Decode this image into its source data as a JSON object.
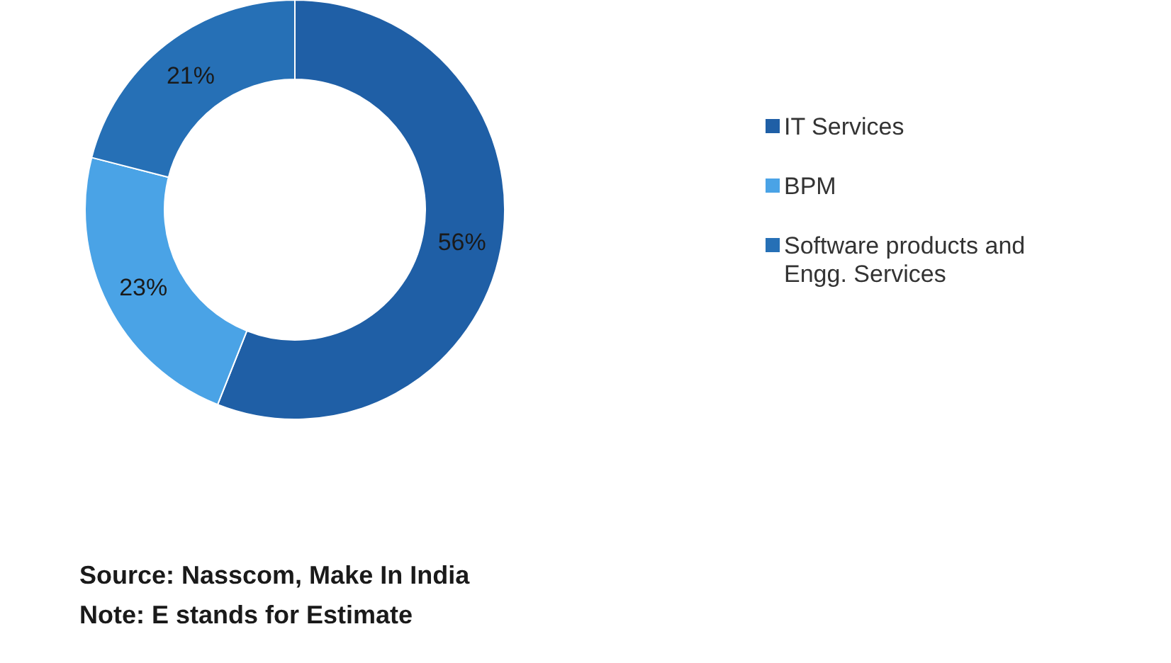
{
  "chart_data": {
    "type": "donut",
    "categories": [
      "IT Services",
      "BPM",
      "Software products and Engg. Services"
    ],
    "values": [
      56,
      23,
      21
    ],
    "colors": [
      "#1f5fa6",
      "#4aa3e6",
      "#2670b6"
    ],
    "value_labels": [
      "56%",
      "23%",
      "21%"
    ],
    "legend": "right",
    "annotations": [
      "Source: Nasscom, Make In India",
      "Note: E stands for Estimate"
    ]
  }
}
